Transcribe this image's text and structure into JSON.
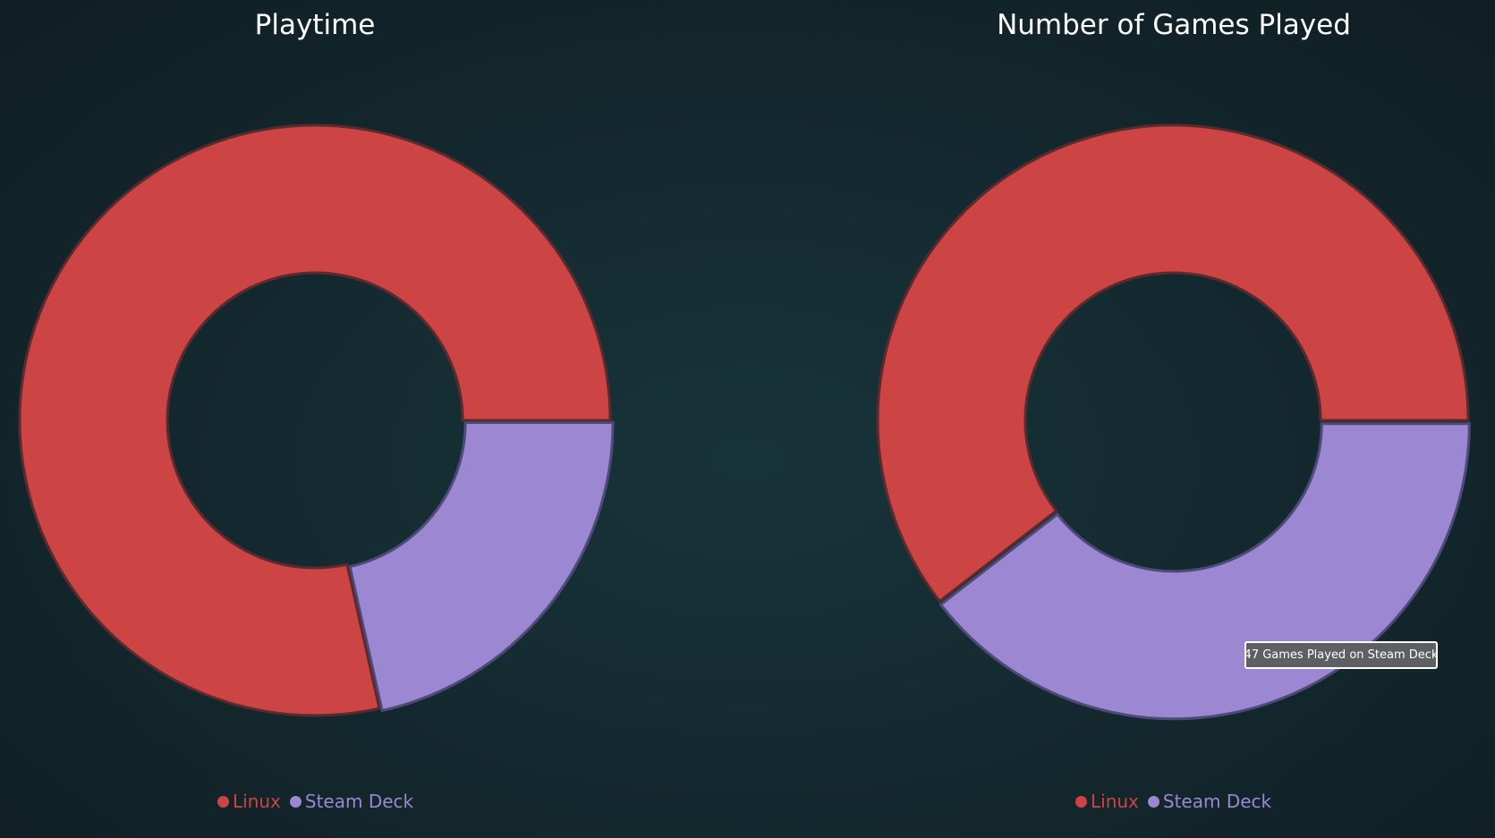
{
  "chart_data": [
    {
      "type": "pie",
      "style": "donut",
      "title": "Playtime",
      "categories": [
        "Linux",
        "Steam Deck"
      ],
      "values": [
        78.5,
        21.5
      ],
      "colors": [
        "#cc4444",
        "#9b87d2"
      ],
      "legend": "bottom"
    },
    {
      "type": "pie",
      "style": "donut",
      "title": "Number of Games Played",
      "categories": [
        "Linux",
        "Steam Deck"
      ],
      "values": [
        60.5,
        39.5
      ],
      "colors": [
        "#cc4444",
        "#9b87d2"
      ],
      "legend": "bottom",
      "tooltip": "47 Games Played on Steam Deck"
    }
  ],
  "colors": {
    "linux": "#cc4444",
    "steam_deck": "#9b87d2",
    "segment_border": "#0f1e23",
    "tooltip_bg": "#5d5f63"
  }
}
